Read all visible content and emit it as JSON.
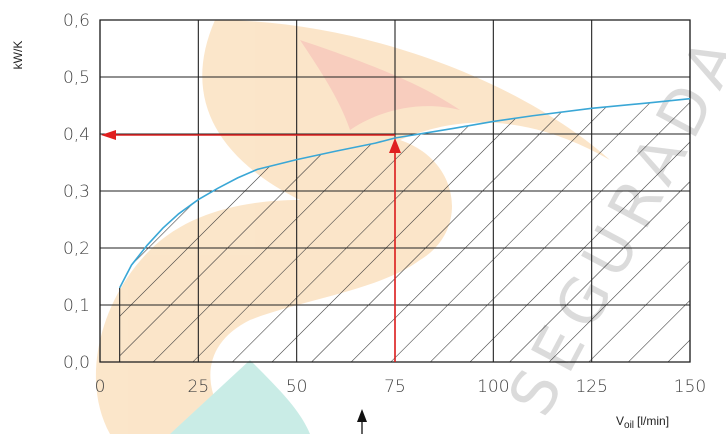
{
  "chart_data": {
    "type": "line",
    "ylabel": "kW/K",
    "xlabel_main": "V",
    "xlabel_sub": "oil",
    "xlabel_unit": "[l/min]",
    "xlim": [
      0,
      150
    ],
    "ylim": [
      0,
      0.6
    ],
    "x_ticks": [
      0,
      25,
      50,
      75,
      100,
      125,
      150
    ],
    "x_tick_labels": [
      "0",
      "25",
      "50",
      "75",
      "100",
      "125",
      "150"
    ],
    "y_ticks": [
      0,
      0.1,
      0.2,
      0.3,
      0.4,
      0.5,
      0.6
    ],
    "y_tick_labels": [
      "0,0",
      "0,1",
      "0,2",
      "0,3",
      "0,4",
      "0,5",
      "0,6"
    ],
    "grid": true,
    "series": [
      {
        "color": "#3aa7d6",
        "x": [
          5,
          8,
          12,
          16,
          20,
          25,
          30,
          35,
          40,
          50,
          60,
          70,
          75,
          90,
          100,
          110,
          125,
          140,
          150
        ],
        "y": [
          0.13,
          0.17,
          0.205,
          0.235,
          0.26,
          0.285,
          0.305,
          0.323,
          0.338,
          0.355,
          0.37,
          0.384,
          0.393,
          0.41,
          0.422,
          0.432,
          0.445,
          0.455,
          0.462
        ]
      }
    ],
    "hatched_region": {
      "x_start": 5,
      "description_color": "#222222"
    },
    "annotations": {
      "reference_x": 75,
      "reference_y": 0.4,
      "arrow_color": "#e02020"
    }
  },
  "watermark": {
    "text": "SEGURADA",
    "colors": {
      "orange": "#f7a030",
      "teal": "#38b8a8",
      "red": "#e84828"
    }
  }
}
